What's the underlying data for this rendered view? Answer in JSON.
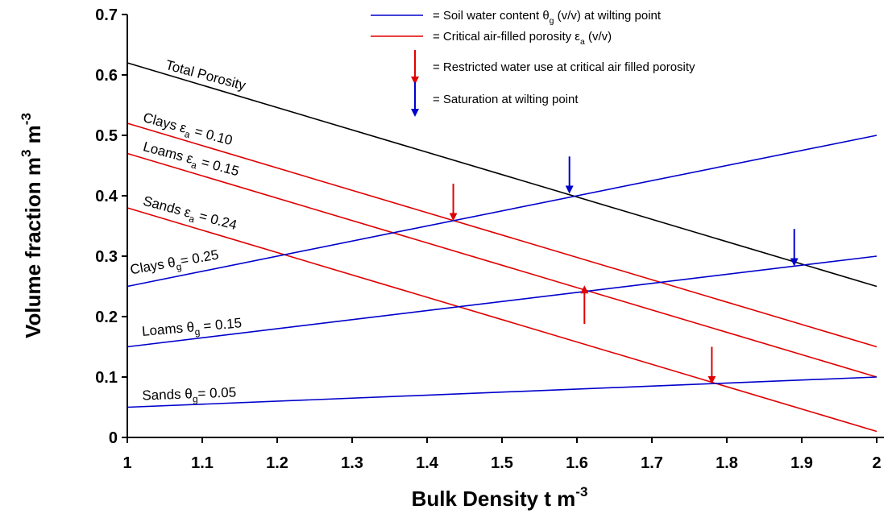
{
  "chart_data": {
    "type": "line",
    "xlabel": "Bulk Density t m",
    "xlabel_sup": "-3",
    "ylabel": "Volume fraction m",
    "ylabel_sup1": "3",
    "ylabel_mid": " m",
    "ylabel_sup2": "-3",
    "xlim": [
      1,
      2
    ],
    "ylim": [
      0,
      0.7
    ],
    "x_ticks": [
      "1",
      "1.1",
      "1.2",
      "1.3",
      "1.4",
      "1.5",
      "1.6",
      "1.7",
      "1.8",
      "1.9",
      "2"
    ],
    "y_ticks": [
      "0",
      "0.1",
      "0.2",
      "0.3",
      "0.4",
      "0.5",
      "0.6",
      "0.7"
    ],
    "grid": false,
    "legend_position": "top-right",
    "legend": [
      {
        "kind": "line",
        "color": "#0000cc",
        "main": "= Soil water content θ",
        "sub": "g",
        "tail": " (v/v) at wilting point"
      },
      {
        "kind": "line",
        "color": "#e00000",
        "main": "= Critical air-filled porosity ε",
        "sub": "a",
        "tail": " (v/v)"
      },
      {
        "kind": "arrow-down",
        "color": "#e00000",
        "main": "= Restricted water use at critical air filled porosity",
        "sub": "",
        "tail": ""
      },
      {
        "kind": "arrow-down",
        "color": "#0000cc",
        "main": "= Saturation at wilting point",
        "sub": "",
        "tail": ""
      }
    ],
    "series": [
      {
        "name": "Total Porosity",
        "color": "#000000",
        "x": [
          1,
          2
        ],
        "y": [
          0.62,
          0.25
        ]
      },
      {
        "name": "Clays εa = 0.10",
        "color": "#e00000",
        "x": [
          1,
          2
        ],
        "y": [
          0.52,
          0.15
        ]
      },
      {
        "name": "Loams εa = 0.15",
        "color": "#e00000",
        "x": [
          1,
          2
        ],
        "y": [
          0.47,
          0.1
        ]
      },
      {
        "name": "Sands εa = 0.24",
        "color": "#e00000",
        "x": [
          1,
          2
        ],
        "y": [
          0.38,
          0.01
        ]
      },
      {
        "name": "Clays θg = 0.25",
        "color": "#0000cc",
        "x": [
          1,
          2
        ],
        "y": [
          0.25,
          0.5
        ]
      },
      {
        "name": "Loams θg = 0.15",
        "color": "#0000cc",
        "x": [
          1,
          2
        ],
        "y": [
          0.15,
          0.3
        ]
      },
      {
        "name": "Sands θg = 0.05",
        "color": "#0000cc",
        "x": [
          1,
          2
        ],
        "y": [
          0.05,
          0.1
        ]
      }
    ],
    "line_labels": [
      {
        "main": "Total Porosity",
        "sub": "",
        "tail": "",
        "x": 1.05,
        "y": 0.61,
        "angle": 15,
        "size": 21
      },
      {
        "main": "Clays ε",
        "sub": "a",
        "tail": " = 0.10",
        "x": 1.02,
        "y": 0.523,
        "angle": 15,
        "size": 17
      },
      {
        "main": "Loams ε",
        "sub": "a",
        "tail": " = 0.15",
        "x": 1.02,
        "y": 0.475,
        "angle": 15,
        "size": 17
      },
      {
        "main": "Sands ε",
        "sub": "a",
        "tail": " = 0.24",
        "x": 1.02,
        "y": 0.385,
        "angle": 15,
        "size": 17
      },
      {
        "main": "Clays θ",
        "sub": "g",
        "tail": "= 0.25",
        "x": 1.005,
        "y": 0.27,
        "angle": -10,
        "size": 17
      },
      {
        "main": "Loams θ",
        "sub": "g",
        "tail": " = 0.15",
        "x": 1.02,
        "y": 0.168,
        "angle": -5,
        "size": 17
      },
      {
        "main": "Sands θ",
        "sub": "g",
        "tail": "= 0.05",
        "x": 1.02,
        "y": 0.062,
        "angle": -2,
        "size": 17
      }
    ],
    "arrows": [
      {
        "color": "#0000cc",
        "direction": "down",
        "x": 1.59,
        "y_start": 0.465,
        "y_end": 0.41
      },
      {
        "color": "#0000cc",
        "direction": "down",
        "x": 1.89,
        "y_start": 0.345,
        "y_end": 0.29
      },
      {
        "color": "#e00000",
        "direction": "down",
        "x": 1.435,
        "y_start": 0.42,
        "y_end": 0.365
      },
      {
        "color": "#e00000",
        "direction": "up",
        "x": 1.61,
        "y_start": 0.188,
        "y_end": 0.245
      },
      {
        "color": "#e00000",
        "direction": "down",
        "x": 1.78,
        "y_start": 0.15,
        "y_end": 0.095
      }
    ]
  }
}
